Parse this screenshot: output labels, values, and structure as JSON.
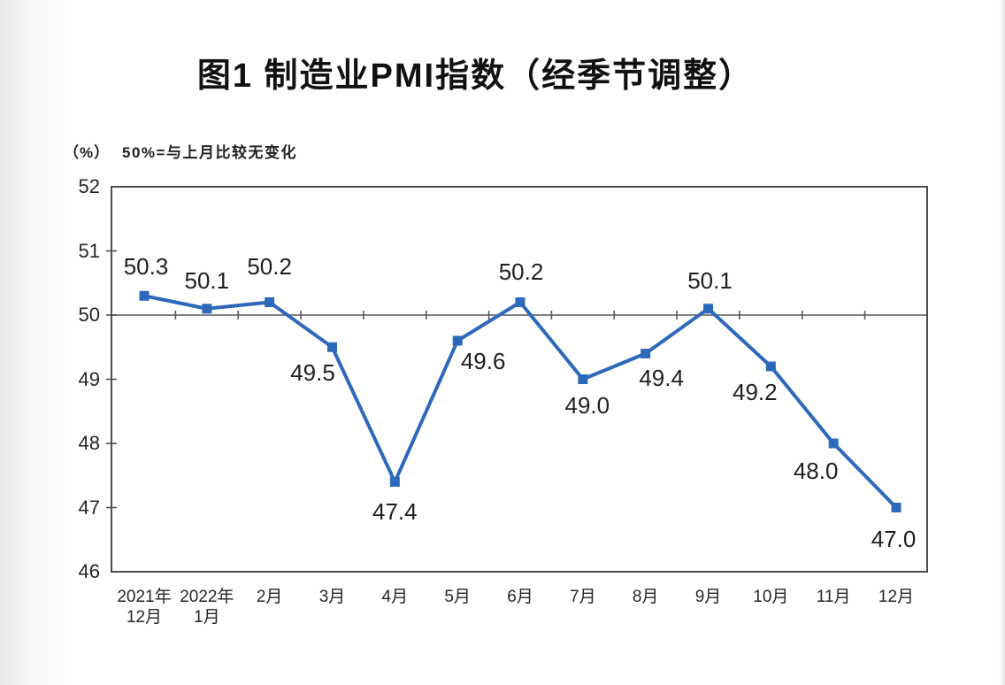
{
  "page": {
    "title": "图1 制造业PMI指数（经季节调整）",
    "unit_label": "（%）",
    "note": "50%=与上月比较无变化"
  },
  "chart_data": {
    "type": "line",
    "title": "图1 制造业PMI指数（经季节调整）",
    "unit_label": "（%）",
    "annotation": "50%=与上月比较无变化",
    "categories": [
      [
        "2021年",
        "12月"
      ],
      [
        "2022年",
        "1月"
      ],
      [
        "2月"
      ],
      [
        "3月"
      ],
      [
        "4月"
      ],
      [
        "5月"
      ],
      [
        "6月"
      ],
      [
        "7月"
      ],
      [
        "8月"
      ],
      [
        "9月"
      ],
      [
        "10月"
      ],
      [
        "11月"
      ],
      [
        "12月"
      ]
    ],
    "values": [
      50.3,
      50.1,
      50.2,
      49.5,
      47.4,
      49.6,
      50.2,
      49.0,
      49.4,
      50.1,
      49.2,
      48.0,
      47.0
    ],
    "data_labels": [
      "50.3",
      "50.1",
      "50.2",
      "49.5",
      "47.4",
      "49.6",
      "50.2",
      "49.0",
      "49.4",
      "50.1",
      "49.2",
      "48.0",
      "47.0"
    ],
    "label_side": [
      "above",
      "above",
      "above",
      "below-left",
      "below",
      "below-right",
      "above",
      "below",
      "below-right",
      "above",
      "below-left",
      "below-left",
      "below"
    ],
    "ylim": [
      46,
      52
    ],
    "yticks": [
      46,
      47,
      48,
      49,
      50,
      51,
      52
    ],
    "reference_value": 50,
    "marker": "square",
    "line_color": "#2E68BB",
    "axis_color": "#4D4D4D",
    "tick_color": "#595959",
    "label_color": "#1F1F1F",
    "grid": false,
    "legend": false
  }
}
